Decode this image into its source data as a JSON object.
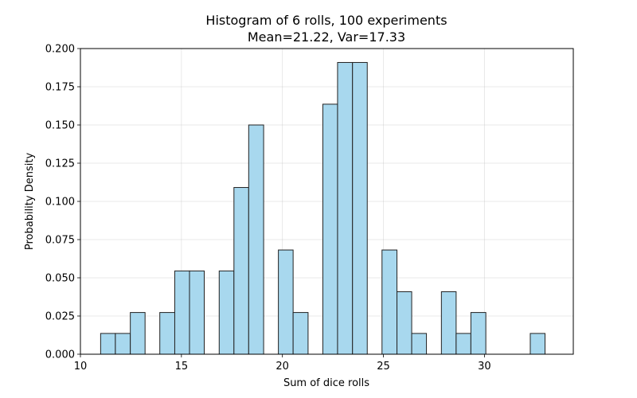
{
  "chart_data": {
    "type": "bar",
    "title": "Histogram of 6 rolls, 100 experiments",
    "subtitle": "Mean=21.22, Var=17.33",
    "xlabel": "Sum of dice rolls",
    "ylabel": "Probability Density",
    "xlim": [
      10,
      34.4
    ],
    "ylim": [
      0,
      0.2
    ],
    "xticks": [
      10,
      15,
      20,
      25,
      30
    ],
    "yticks": [
      0.0,
      0.025,
      0.05,
      0.075,
      0.1,
      0.125,
      0.15,
      0.175,
      0.2
    ],
    "ytick_labels": [
      "0.000",
      "0.025",
      "0.050",
      "0.075",
      "0.100",
      "0.125",
      "0.150",
      "0.175",
      "0.200"
    ],
    "grid": true,
    "bar_color": "#a8d8ee",
    "edge_color": "#222222",
    "bins": [
      {
        "x0": 11.0,
        "x1": 11.73,
        "value": 0.0136
      },
      {
        "x0": 11.73,
        "x1": 12.47,
        "value": 0.0136
      },
      {
        "x0": 12.47,
        "x1": 13.2,
        "value": 0.0273
      },
      {
        "x0": 13.2,
        "x1": 13.93,
        "value": 0
      },
      {
        "x0": 13.93,
        "x1": 14.67,
        "value": 0.0273
      },
      {
        "x0": 14.67,
        "x1": 15.4,
        "value": 0.0545
      },
      {
        "x0": 15.4,
        "x1": 16.13,
        "value": 0.0545
      },
      {
        "x0": 16.13,
        "x1": 16.87,
        "value": 0
      },
      {
        "x0": 16.87,
        "x1": 17.6,
        "value": 0.0545
      },
      {
        "x0": 17.6,
        "x1": 18.33,
        "value": 0.1091
      },
      {
        "x0": 18.33,
        "x1": 19.07,
        "value": 0.15
      },
      {
        "x0": 19.07,
        "x1": 19.8,
        "value": 0
      },
      {
        "x0": 19.8,
        "x1": 20.53,
        "value": 0.0682
      },
      {
        "x0": 20.53,
        "x1": 21.27,
        "value": 0.0273
      },
      {
        "x0": 21.27,
        "x1": 22.0,
        "value": 0
      },
      {
        "x0": 22.0,
        "x1": 22.73,
        "value": 0.1636
      },
      {
        "x0": 22.73,
        "x1": 23.47,
        "value": 0.1909
      },
      {
        "x0": 23.47,
        "x1": 24.2,
        "value": 0.1909
      },
      {
        "x0": 24.2,
        "x1": 24.93,
        "value": 0
      },
      {
        "x0": 24.93,
        "x1": 25.67,
        "value": 0.0682
      },
      {
        "x0": 25.67,
        "x1": 26.4,
        "value": 0.0409
      },
      {
        "x0": 26.4,
        "x1": 27.13,
        "value": 0.0136
      },
      {
        "x0": 27.13,
        "x1": 27.87,
        "value": 0
      },
      {
        "x0": 27.87,
        "x1": 28.6,
        "value": 0.0409
      },
      {
        "x0": 28.6,
        "x1": 29.33,
        "value": 0.0136
      },
      {
        "x0": 29.33,
        "x1": 30.07,
        "value": 0.0273
      },
      {
        "x0": 30.07,
        "x1": 30.8,
        "value": 0
      },
      {
        "x0": 30.8,
        "x1": 31.53,
        "value": 0
      },
      {
        "x0": 31.53,
        "x1": 32.27,
        "value": 0
      },
      {
        "x0": 32.27,
        "x1": 33.0,
        "value": 0.0136
      }
    ]
  }
}
